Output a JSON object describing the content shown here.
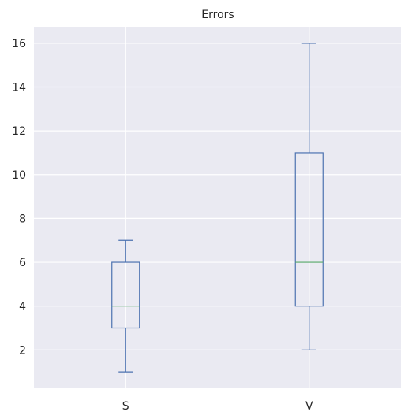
{
  "chart_data": {
    "type": "box",
    "title": "Errors",
    "xlabel": "",
    "ylabel": "",
    "categories": [
      "S",
      "V"
    ],
    "boxes": [
      {
        "name": "S",
        "whisker_low": 1,
        "q1": 3,
        "median": 4,
        "q3": 6,
        "whisker_high": 7
      },
      {
        "name": "V",
        "whisker_low": 2,
        "q1": 4,
        "median": 6,
        "q3": 11,
        "whisker_high": 16
      }
    ],
    "ylim": [
      0.25,
      16.75
    ],
    "yticks": [
      2,
      4,
      6,
      8,
      10,
      12,
      14,
      16
    ],
    "grid": true,
    "colors": {
      "background": "#eaeaf2",
      "grid": "#ffffff",
      "box": "#4c72b0",
      "median": "#55a868"
    }
  }
}
